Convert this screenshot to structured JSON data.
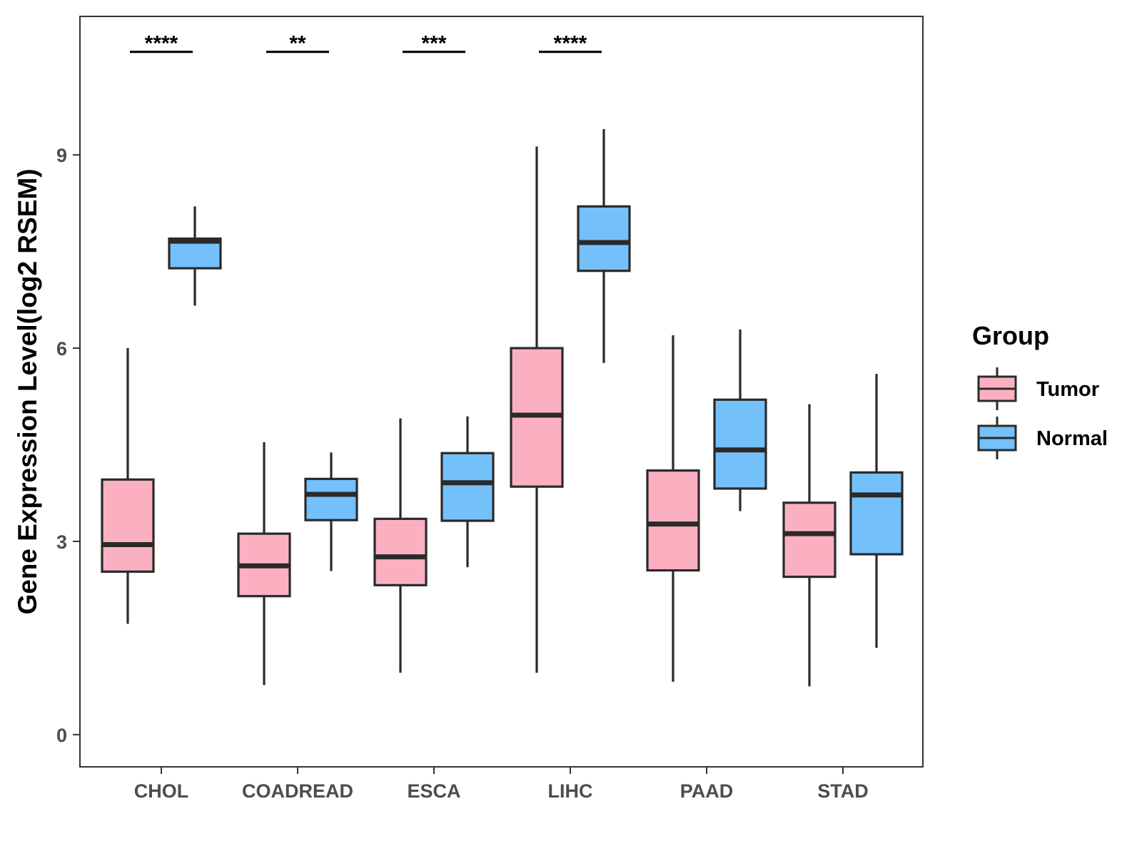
{
  "chart_data": {
    "type": "boxplot",
    "ylabel": "Gene Expression Level(log2 RSEM)",
    "xlabel": "",
    "ylim": [
      -0.5,
      11.15
    ],
    "yticks": [
      0,
      3,
      6,
      9
    ],
    "categories": [
      "CHOL",
      "COADREAD",
      "ESCA",
      "LIHC",
      "PAAD",
      "STAD"
    ],
    "legend": {
      "title": "Group",
      "position": "right",
      "entries": [
        {
          "key": "tumor",
          "label": "Tumor"
        },
        {
          "key": "normal",
          "label": "Normal"
        }
      ]
    },
    "colors": {
      "tumor": "#fbb0c2",
      "normal": "#74c0fb",
      "stroke": "#2a2a2a"
    },
    "series": [
      {
        "name": "Tumor",
        "key": "tumor",
        "boxes": [
          {
            "category": "CHOL",
            "min": 1.72,
            "q1": 2.53,
            "median": 2.95,
            "q3": 3.96,
            "max": 6.0
          },
          {
            "category": "COADREAD",
            "min": 0.77,
            "q1": 2.15,
            "median": 2.62,
            "q3": 3.12,
            "max": 4.54
          },
          {
            "category": "ESCA",
            "min": 0.96,
            "q1": 2.32,
            "median": 2.76,
            "q3": 3.35,
            "max": 4.91
          },
          {
            "category": "LIHC",
            "min": 0.96,
            "q1": 3.85,
            "median": 4.96,
            "q3": 6.0,
            "max": 9.13
          },
          {
            "category": "PAAD",
            "min": 0.82,
            "q1": 2.55,
            "median": 3.27,
            "q3": 4.1,
            "max": 6.2
          },
          {
            "category": "STAD",
            "min": 0.75,
            "q1": 2.45,
            "median": 3.12,
            "q3": 3.6,
            "max": 5.13
          }
        ]
      },
      {
        "name": "Normal",
        "key": "normal",
        "boxes": [
          {
            "category": "CHOL",
            "min": 6.66,
            "q1": 7.24,
            "median": 7.66,
            "q3": 7.7,
            "max": 8.2
          },
          {
            "category": "COADREAD",
            "min": 2.54,
            "q1": 3.33,
            "median": 3.73,
            "q3": 3.97,
            "max": 4.38
          },
          {
            "category": "ESCA",
            "min": 2.6,
            "q1": 3.32,
            "median": 3.91,
            "q3": 4.37,
            "max": 4.94
          },
          {
            "category": "LIHC",
            "min": 5.77,
            "q1": 7.2,
            "median": 7.64,
            "q3": 8.2,
            "max": 9.4
          },
          {
            "category": "PAAD",
            "min": 3.47,
            "q1": 3.82,
            "median": 4.42,
            "q3": 5.2,
            "max": 6.29
          },
          {
            "category": "STAD",
            "min": 1.35,
            "q1": 2.8,
            "median": 3.72,
            "q3": 4.07,
            "max": 5.6
          }
        ]
      }
    ],
    "significance": [
      {
        "category": "CHOL",
        "label": "****"
      },
      {
        "category": "COADREAD",
        "label": "**"
      },
      {
        "category": "ESCA",
        "label": "***"
      },
      {
        "category": "LIHC",
        "label": "****"
      }
    ],
    "significance_y": 10.6,
    "grid": false
  }
}
